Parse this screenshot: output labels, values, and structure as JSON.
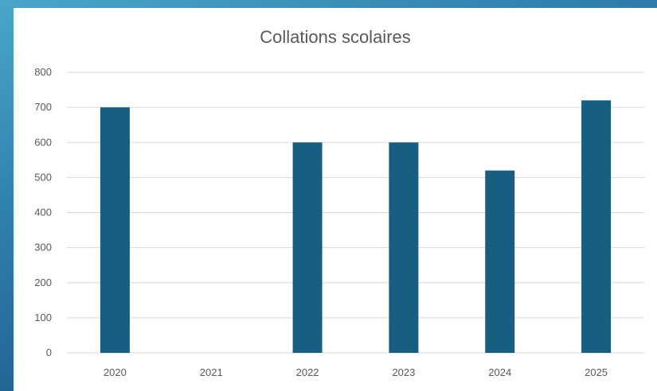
{
  "chart_data": {
    "type": "bar",
    "title": "Collations scolaires",
    "categories": [
      "2020",
      "2021",
      "2022",
      "2023",
      "2024",
      "2025"
    ],
    "values": [
      700,
      0,
      600,
      600,
      520,
      720
    ],
    "ylim": [
      0,
      800
    ],
    "yticks": [
      0,
      100,
      200,
      300,
      400,
      500,
      600,
      700,
      800
    ],
    "xlabel": "",
    "ylabel": "",
    "grid": true,
    "legend": "none",
    "bar_color": "#175e80",
    "grid_color": "#d9d9d9"
  }
}
